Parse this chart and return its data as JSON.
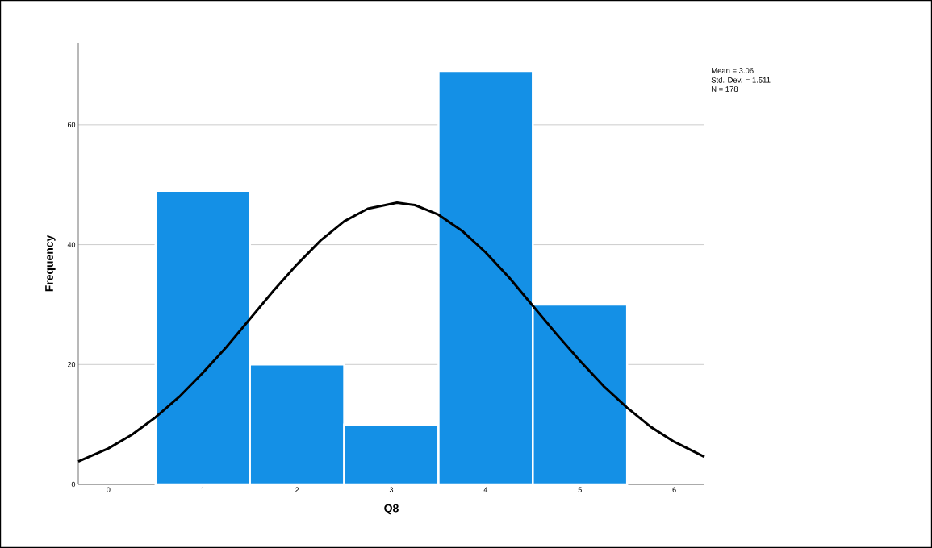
{
  "chart_data": {
    "type": "histogram",
    "xlabel": "Q8",
    "ylabel": "Frequency",
    "bins": [
      0.5,
      1.5,
      2.5,
      3.5,
      4.5,
      5.5
    ],
    "values": [
      49,
      20,
      10,
      69,
      30
    ],
    "color": "#1490e6",
    "xlim": [
      -0.32,
      6.32
    ],
    "ylim": [
      0,
      73.7
    ],
    "xticks": [
      0,
      1,
      2,
      3,
      4,
      5,
      6
    ],
    "yticks": [
      0,
      20,
      40,
      60
    ],
    "grid": "y",
    "series": [
      {
        "type": "line",
        "color": "#000000",
        "marker": "none",
        "line_style": "solid",
        "x": [
          -0.32,
          0,
          0.25,
          0.5,
          0.75,
          1,
          1.25,
          1.5,
          1.75,
          2,
          2.25,
          2.5,
          2.75,
          3.06,
          3.25,
          3.5,
          3.75,
          4,
          4.25,
          4.5,
          4.75,
          5,
          5.25,
          5.5,
          5.75,
          6,
          6.32
        ],
        "values": [
          3.8,
          6.0,
          8.3,
          11.2,
          14.6,
          18.6,
          22.9,
          27.6,
          32.3,
          36.7,
          40.7,
          43.9,
          46.0,
          47.0,
          46.6,
          45.0,
          42.3,
          38.7,
          34.5,
          29.8,
          25.1,
          20.6,
          16.4,
          12.8,
          9.6,
          7.1,
          4.6
        ]
      }
    ],
    "annotations": [
      "Mean = 3.06",
      "Std. Dev. = 1.511",
      "N = 178"
    ]
  }
}
